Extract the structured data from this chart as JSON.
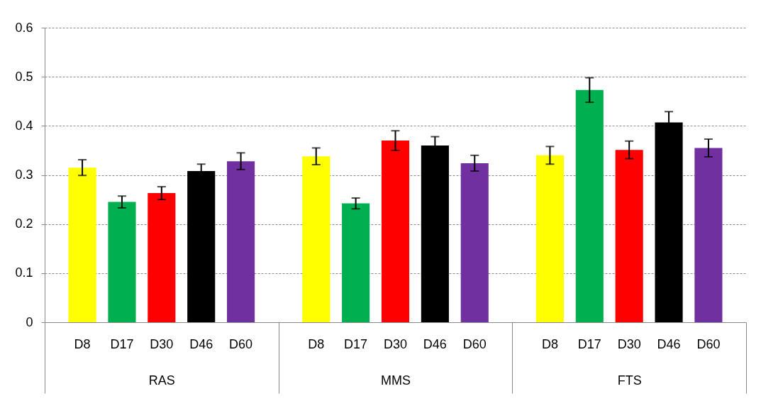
{
  "chart_data": {
    "type": "bar",
    "categories": [
      "RAS",
      "MMS",
      "FTS"
    ],
    "series": [
      {
        "name": "D8",
        "color": "#ffff00",
        "values": [
          0.315,
          0.338,
          0.34
        ],
        "errors": [
          0.016,
          0.017,
          0.018
        ]
      },
      {
        "name": "D17",
        "color": "#00b050",
        "values": [
          0.245,
          0.242,
          0.473
        ],
        "errors": [
          0.012,
          0.011,
          0.025
        ]
      },
      {
        "name": "D30",
        "color": "#ff0000",
        "values": [
          0.263,
          0.37,
          0.351
        ],
        "errors": [
          0.013,
          0.02,
          0.018
        ]
      },
      {
        "name": "D46",
        "color": "#000000",
        "values": [
          0.308,
          0.36,
          0.407
        ],
        "errors": [
          0.014,
          0.018,
          0.022
        ]
      },
      {
        "name": "D60",
        "color": "#7030a0",
        "values": [
          0.328,
          0.324,
          0.355
        ],
        "errors": [
          0.017,
          0.016,
          0.018
        ]
      }
    ],
    "ylim": [
      0,
      0.6
    ],
    "yticks": [
      0,
      0.1,
      0.2,
      0.3,
      0.4,
      0.5,
      0.6
    ],
    "grid": "y",
    "legend": false
  }
}
